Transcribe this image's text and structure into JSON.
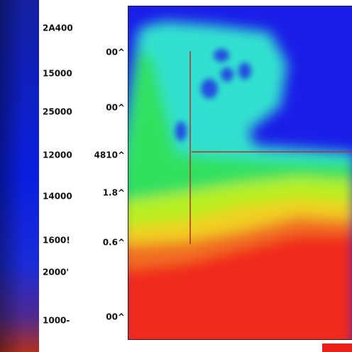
{
  "left_labels": [
    "2A400",
    "15000",
    "25000",
    "12000",
    "14000",
    "1600!",
    "2000'",
    "1000-"
  ],
  "right_labels": [
    "00^",
    "00^",
    "4810^",
    "1.8^",
    "0.6^",
    "00^"
  ]
}
